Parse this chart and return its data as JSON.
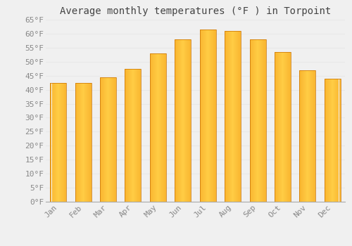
{
  "months": [
    "Jan",
    "Feb",
    "Mar",
    "Apr",
    "May",
    "Jun",
    "Jul",
    "Aug",
    "Sep",
    "Oct",
    "Nov",
    "Dec"
  ],
  "values": [
    42.5,
    42.5,
    44.5,
    47.5,
    53.0,
    58.0,
    61.5,
    61.0,
    58.0,
    53.5,
    47.0,
    44.0
  ],
  "bar_color_left": "#F5A623",
  "bar_color_center": "#FFCC44",
  "bar_color_right": "#F5A623",
  "bar_edge_color": "#C87000",
  "title": "Average monthly temperatures (°F ) in Torpoint",
  "ylim": [
    0,
    65
  ],
  "background_color": "#f0f0f0",
  "grid_color": "#e8e8e8",
  "title_fontsize": 10,
  "tick_fontsize": 8,
  "font_family": "monospace",
  "tick_color": "#888888",
  "bar_width": 0.65
}
